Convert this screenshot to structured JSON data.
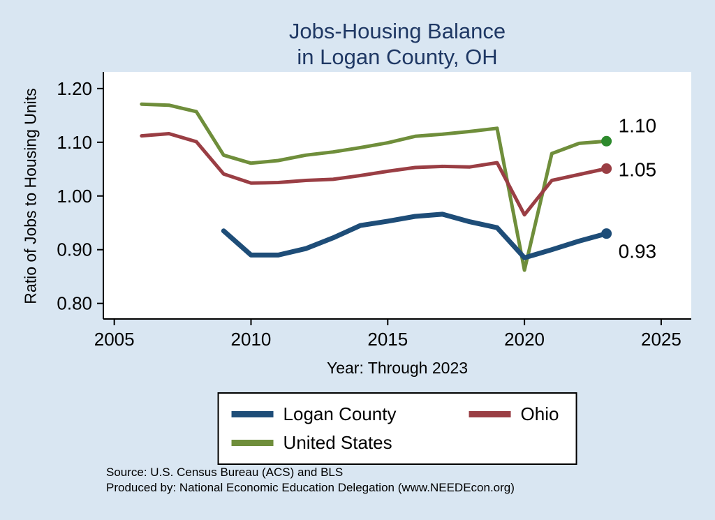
{
  "title": {
    "line1": "Jobs-Housing Balance",
    "line2": "in Logan County, OH"
  },
  "axes": {
    "y_label": "Ratio of Jobs to Housing Units",
    "x_label": "Year: Through 2023"
  },
  "chart_data": {
    "type": "line",
    "title": "Jobs-Housing Balance in Logan County, OH",
    "xlabel": "Year: Through 2023",
    "ylabel": "Ratio of Jobs to Housing Units",
    "xlim": [
      2004.6,
      2026.1
    ],
    "ylim": [
      0.771,
      1.231
    ],
    "grid": false,
    "legend_position": "bottom",
    "x_ticks": [
      {
        "value": 2005,
        "label": "2005"
      },
      {
        "value": 2010,
        "label": "2010"
      },
      {
        "value": 2015,
        "label": "2015"
      },
      {
        "value": 2020,
        "label": "2020"
      },
      {
        "value": 2025,
        "label": "2025"
      }
    ],
    "y_ticks": [
      {
        "value": 0.8,
        "label": "0.80"
      },
      {
        "value": 0.9,
        "label": "0.90"
      },
      {
        "value": 1.0,
        "label": "1.00"
      },
      {
        "value": 1.1,
        "label": "1.10"
      },
      {
        "value": 1.2,
        "label": "1.20"
      }
    ],
    "series": [
      {
        "name": "United States",
        "color": "#6f8e3b",
        "marker_color": "#2d8a2d",
        "line_width": 5,
        "end_label": "1.10",
        "end_label_dy": -22,
        "x": [
          2006,
          2007,
          2008,
          2009,
          2010,
          2011,
          2012,
          2013,
          2014,
          2015,
          2016,
          2017,
          2018,
          2019,
          2020,
          2021,
          2022,
          2023
        ],
        "values": [
          1.171,
          1.169,
          1.157,
          1.076,
          1.061,
          1.066,
          1.076,
          1.082,
          1.09,
          1.099,
          1.111,
          1.115,
          1.12,
          1.126,
          0.862,
          1.079,
          1.098,
          1.102
        ]
      },
      {
        "name": "Ohio",
        "color": "#9a3e44",
        "marker_color": "#9a3e44",
        "line_width": 5,
        "end_label": "1.05",
        "end_label_dy": 2,
        "x": [
          2006,
          2007,
          2008,
          2009,
          2010,
          2011,
          2012,
          2013,
          2014,
          2015,
          2016,
          2017,
          2018,
          2019,
          2020,
          2021,
          2022,
          2023
        ],
        "values": [
          1.112,
          1.116,
          1.101,
          1.041,
          1.024,
          1.025,
          1.029,
          1.031,
          1.038,
          1.046,
          1.053,
          1.055,
          1.054,
          1.062,
          0.965,
          1.029,
          1.04,
          1.051
        ]
      },
      {
        "name": "Logan County",
        "color": "#1e4d78",
        "marker_color": "#1e4d78",
        "line_width": 7,
        "end_label": "0.93",
        "end_label_dy": 26,
        "x": [
          2009,
          2010,
          2011,
          2012,
          2013,
          2014,
          2015,
          2016,
          2017,
          2018,
          2019,
          2020,
          2021,
          2022,
          2023
        ],
        "values": [
          0.935,
          0.89,
          0.89,
          0.902,
          0.922,
          0.945,
          0.953,
          0.962,
          0.966,
          0.952,
          0.941,
          0.885,
          0.9,
          0.916,
          0.93
        ]
      }
    ]
  },
  "legend": {
    "items": [
      {
        "label": "Logan County",
        "color": "#1e4d78"
      },
      {
        "label": "Ohio",
        "color": "#9a3e44"
      },
      {
        "label": "United States",
        "color": "#6f8e3b"
      }
    ]
  },
  "footer": {
    "source": "Source: U.S. Census Bureau (ACS) and BLS",
    "produced": "Produced by: National Economic Education Delegation (www.NEEDEcon.org)"
  }
}
